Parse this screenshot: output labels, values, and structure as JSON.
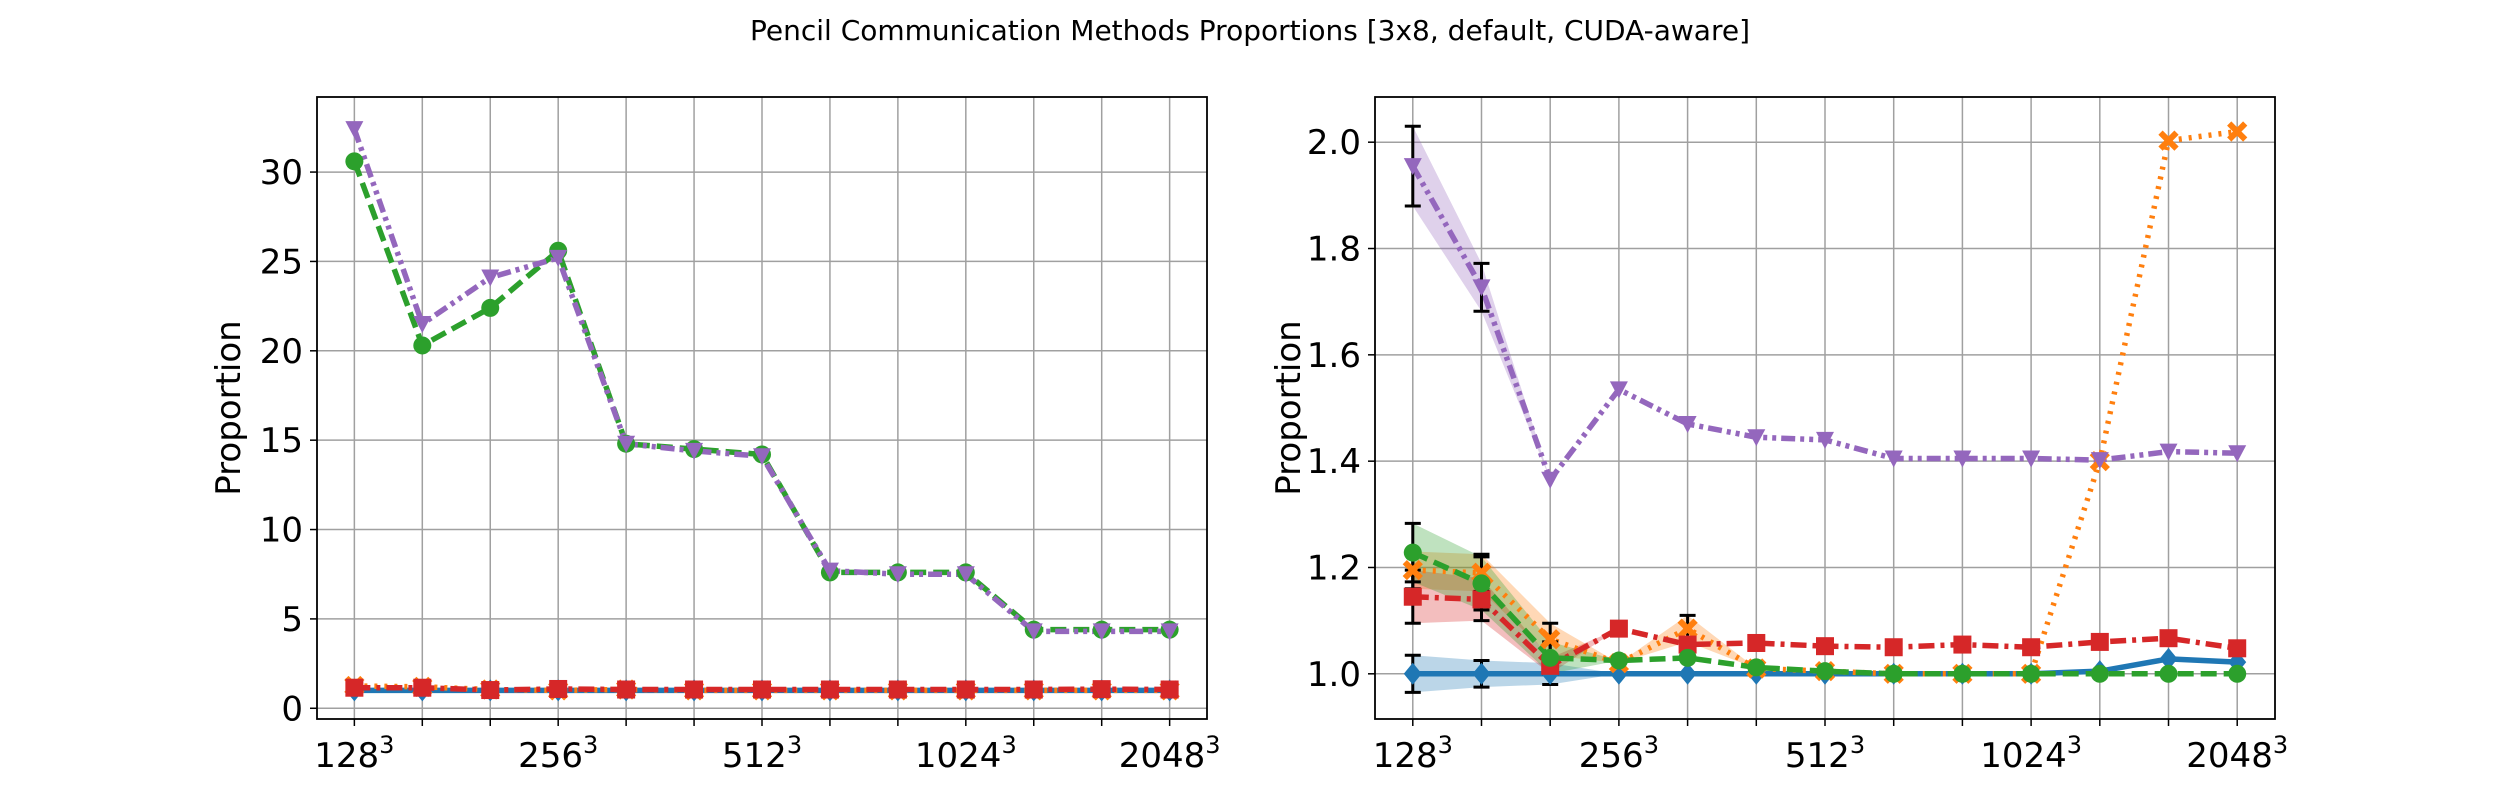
{
  "figure": {
    "suptitle": "Pencil Communication Methods Proportions [3x8, default, CUDA-aware]"
  },
  "chart_data": [
    {
      "type": "line",
      "title": "",
      "xlabel": "",
      "ylabel": "Proportion",
      "x": [
        0,
        1,
        2,
        3,
        4,
        5,
        6,
        7,
        8,
        9,
        10,
        11,
        12
      ],
      "xlim": [
        -0.55,
        12.55
      ],
      "ylim": [
        -0.6,
        34.2
      ],
      "yticks": [
        0,
        5,
        10,
        15,
        20,
        25,
        30
      ],
      "xticks": [
        {
          "pos": 0,
          "base": "128",
          "exp": "3"
        },
        {
          "pos": 3,
          "base": "256",
          "exp": "3"
        },
        {
          "pos": 6,
          "base": "512",
          "exp": "3"
        },
        {
          "pos": 9,
          "base": "1024",
          "exp": "3"
        },
        {
          "pos": 12,
          "base": "2048",
          "exp": "3"
        }
      ],
      "grid": true,
      "series": [
        {
          "color": "#1f77b4",
          "dash": "",
          "marker": "diamond",
          "values": [
            1.0,
            1.0,
            1.0,
            1.0,
            1.0,
            1.0,
            1.0,
            1.0,
            1.0,
            1.0,
            1.0,
            1.0,
            1.0
          ]
        },
        {
          "color": "#ff7f0e",
          "dash": "dotted",
          "marker": "x",
          "values": [
            1.25,
            1.2,
            1.05,
            1.0,
            1.05,
            1.0,
            1.0,
            1.0,
            1.0,
            1.0,
            1.0,
            1.0,
            1.0
          ]
        },
        {
          "color": "#d62728",
          "dash": "dashdot",
          "marker": "square",
          "values": [
            1.15,
            1.15,
            1.02,
            1.08,
            1.05,
            1.05,
            1.05,
            1.05,
            1.05,
            1.05,
            1.05,
            1.07,
            1.05
          ]
        },
        {
          "color": "#2ca02c",
          "dash": "dashed",
          "marker": "circle",
          "values": [
            30.6,
            20.3,
            22.4,
            25.6,
            14.8,
            14.5,
            14.2,
            7.6,
            7.6,
            7.6,
            4.4,
            4.4,
            4.4
          ]
        },
        {
          "color": "#9467bd",
          "dash": "dashdotdot",
          "marker": "triangle-down",
          "values": [
            32.4,
            21.5,
            24.1,
            25.2,
            14.8,
            14.4,
            14.1,
            7.7,
            7.5,
            7.5,
            4.3,
            4.3,
            4.3
          ]
        }
      ]
    },
    {
      "type": "line",
      "title": "",
      "xlabel": "",
      "ylabel": "Proportion",
      "x": [
        0,
        1,
        2,
        3,
        4,
        5,
        6,
        7,
        8,
        9,
        10,
        11,
        12
      ],
      "xlim": [
        -0.55,
        12.55
      ],
      "ylim": [
        0.915,
        2.085
      ],
      "yticks": [
        1.0,
        1.2,
        1.4,
        1.6,
        1.8,
        2.0
      ],
      "ytick_labels": [
        "1.0",
        "1.2",
        "1.4",
        "1.6",
        "1.8",
        "2.0"
      ],
      "xticks": [
        {
          "pos": 0,
          "base": "128",
          "exp": "3"
        },
        {
          "pos": 3,
          "base": "256",
          "exp": "3"
        },
        {
          "pos": 6,
          "base": "512",
          "exp": "3"
        },
        {
          "pos": 9,
          "base": "1024",
          "exp": "3"
        },
        {
          "pos": 12,
          "base": "2048",
          "exp": "3"
        }
      ],
      "grid": true,
      "series": [
        {
          "color": "#1f77b4",
          "dash": "",
          "marker": "diamond",
          "values": [
            1.0,
            1.0,
            1.0,
            1.0,
            1.0,
            1.0,
            1.0,
            1.0,
            1.0,
            1.0,
            1.005,
            1.028,
            1.022
          ],
          "err": [
            0.035,
            0.025,
            0.02,
            0.0,
            0.0,
            0.0,
            0.0,
            0.0,
            0.0,
            0.0,
            0.0,
            0.0,
            0.0
          ]
        },
        {
          "color": "#ff7f0e",
          "dash": "dotted",
          "marker": "x",
          "values": [
            1.195,
            1.19,
            1.065,
            1.02,
            1.085,
            1.01,
            1.005,
            1.0,
            1.0,
            1.0,
            1.4,
            2.003,
            2.02
          ],
          "err": [
            0.035,
            0.035,
            0.03,
            0.0,
            0.025,
            0.0,
            0.0,
            0.0,
            0.0,
            0.0,
            0.0,
            0.0,
            0.0
          ]
        },
        {
          "color": "#d62728",
          "dash": "dashdot",
          "marker": "square",
          "values": [
            1.145,
            1.14,
            1.015,
            1.085,
            1.055,
            1.058,
            1.052,
            1.05,
            1.055,
            1.05,
            1.06,
            1.067,
            1.048
          ],
          "err": [
            0.05,
            0.04,
            0.015,
            0.0,
            0.0,
            0.0,
            0.0,
            0.0,
            0.0,
            0.0,
            0.0,
            0.0,
            0.0
          ]
        },
        {
          "color": "#2ca02c",
          "dash": "dashed",
          "marker": "circle",
          "values": [
            1.228,
            1.17,
            1.03,
            1.025,
            1.03,
            1.012,
            1.005,
            1.0,
            1.0,
            1.0,
            1.0,
            1.0,
            1.0
          ],
          "err": [
            0.055,
            0.05,
            0.03,
            0.0,
            0.0,
            0.0,
            0.0,
            0.0,
            0.0,
            0.0,
            0.0,
            0.0,
            0.0
          ]
        },
        {
          "color": "#9467bd",
          "dash": "dashdotdot",
          "marker": "triangle-down",
          "values": [
            1.955,
            1.727,
            1.365,
            1.535,
            1.47,
            1.445,
            1.44,
            1.405,
            1.405,
            1.405,
            1.402,
            1.418,
            1.415
          ],
          "err": [
            0.075,
            0.045,
            0.0,
            0.0,
            0.0,
            0.0,
            0.0,
            0.0,
            0.0,
            0.0,
            0.0,
            0.0,
            0.0
          ]
        }
      ]
    }
  ]
}
